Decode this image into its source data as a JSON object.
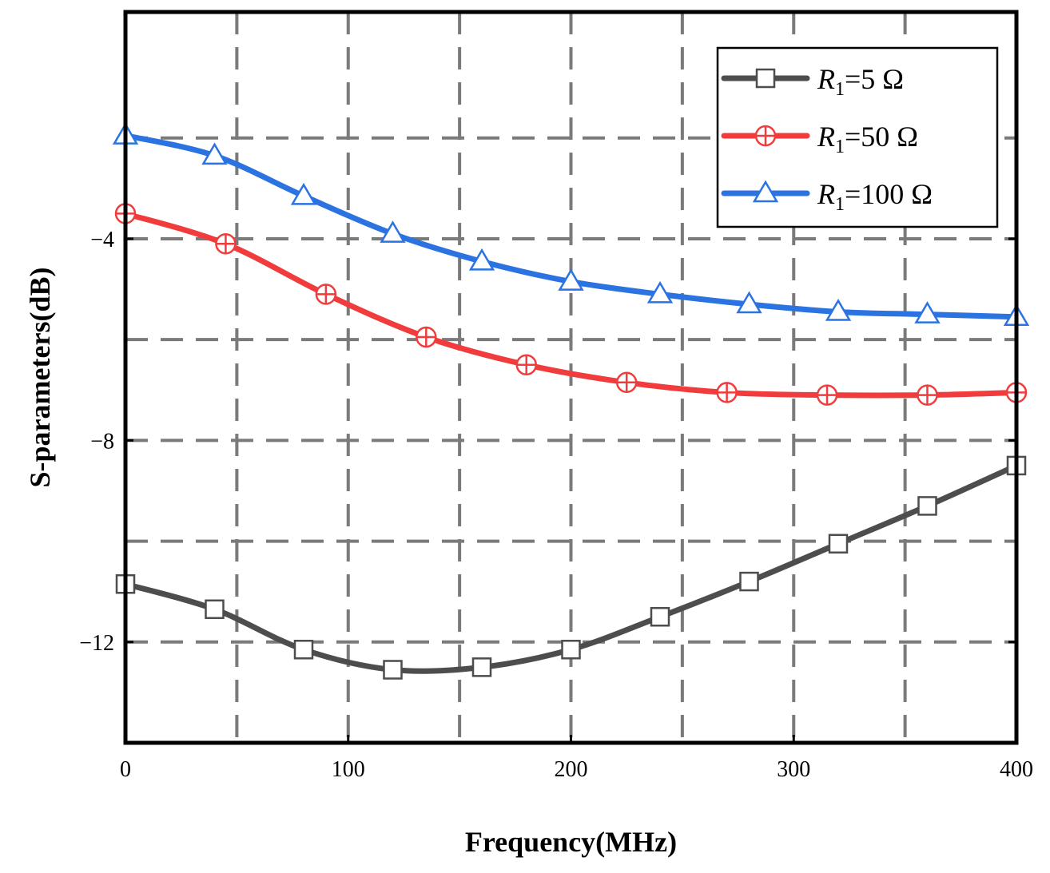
{
  "chart_data": {
    "type": "line",
    "title": "",
    "xlabel": "Frequency(MHz)",
    "ylabel": "S-parameters(dB)",
    "xlim": [
      0,
      400
    ],
    "ylim": [
      -14,
      0.5
    ],
    "xticks": [
      0,
      100,
      200,
      300,
      400
    ],
    "xtick_labels": [
      "0",
      "100",
      "200",
      "300",
      "400"
    ],
    "yticks": [
      -4,
      -8,
      -12
    ],
    "ytick_labels": [
      "-4",
      "-8",
      "-12"
    ],
    "grid": true,
    "legend_position": "top-right",
    "series": [
      {
        "name": "R1=5 Ω",
        "legend_symbol": "R",
        "legend_subscript": "1",
        "legend_rest": "=5 Ω",
        "color": "#4d4d4d",
        "marker": "square",
        "x": [
          0,
          40,
          80,
          120,
          160,
          200,
          240,
          280,
          320,
          360,
          400
        ],
        "y": [
          -10.85,
          -11.35,
          -12.15,
          -12.55,
          -12.5,
          -12.15,
          -11.5,
          -10.8,
          -10.05,
          -9.3,
          -8.5
        ]
      },
      {
        "name": "R1=50 Ω",
        "legend_symbol": "R",
        "legend_subscript": "1",
        "legend_rest": "=50 Ω",
        "color": "#f03c3c",
        "marker": "circle-plus",
        "x": [
          0,
          45,
          90,
          135,
          180,
          225,
          270,
          315,
          360,
          400
        ],
        "y": [
          -3.5,
          -4.1,
          -5.1,
          -5.95,
          -6.5,
          -6.85,
          -7.05,
          -7.1,
          -7.1,
          -7.05
        ]
      },
      {
        "name": "R1=100 Ω",
        "legend_symbol": "R",
        "legend_subscript": "1",
        "legend_rest": "=100 Ω",
        "color": "#2b73e0",
        "marker": "triangle",
        "x": [
          0,
          40,
          80,
          120,
          160,
          200,
          240,
          280,
          320,
          360,
          400
        ],
        "y": [
          -1.95,
          -2.35,
          -3.15,
          -3.9,
          -4.45,
          -4.85,
          -5.1,
          -5.3,
          -5.45,
          -5.5,
          -5.55
        ]
      }
    ]
  }
}
